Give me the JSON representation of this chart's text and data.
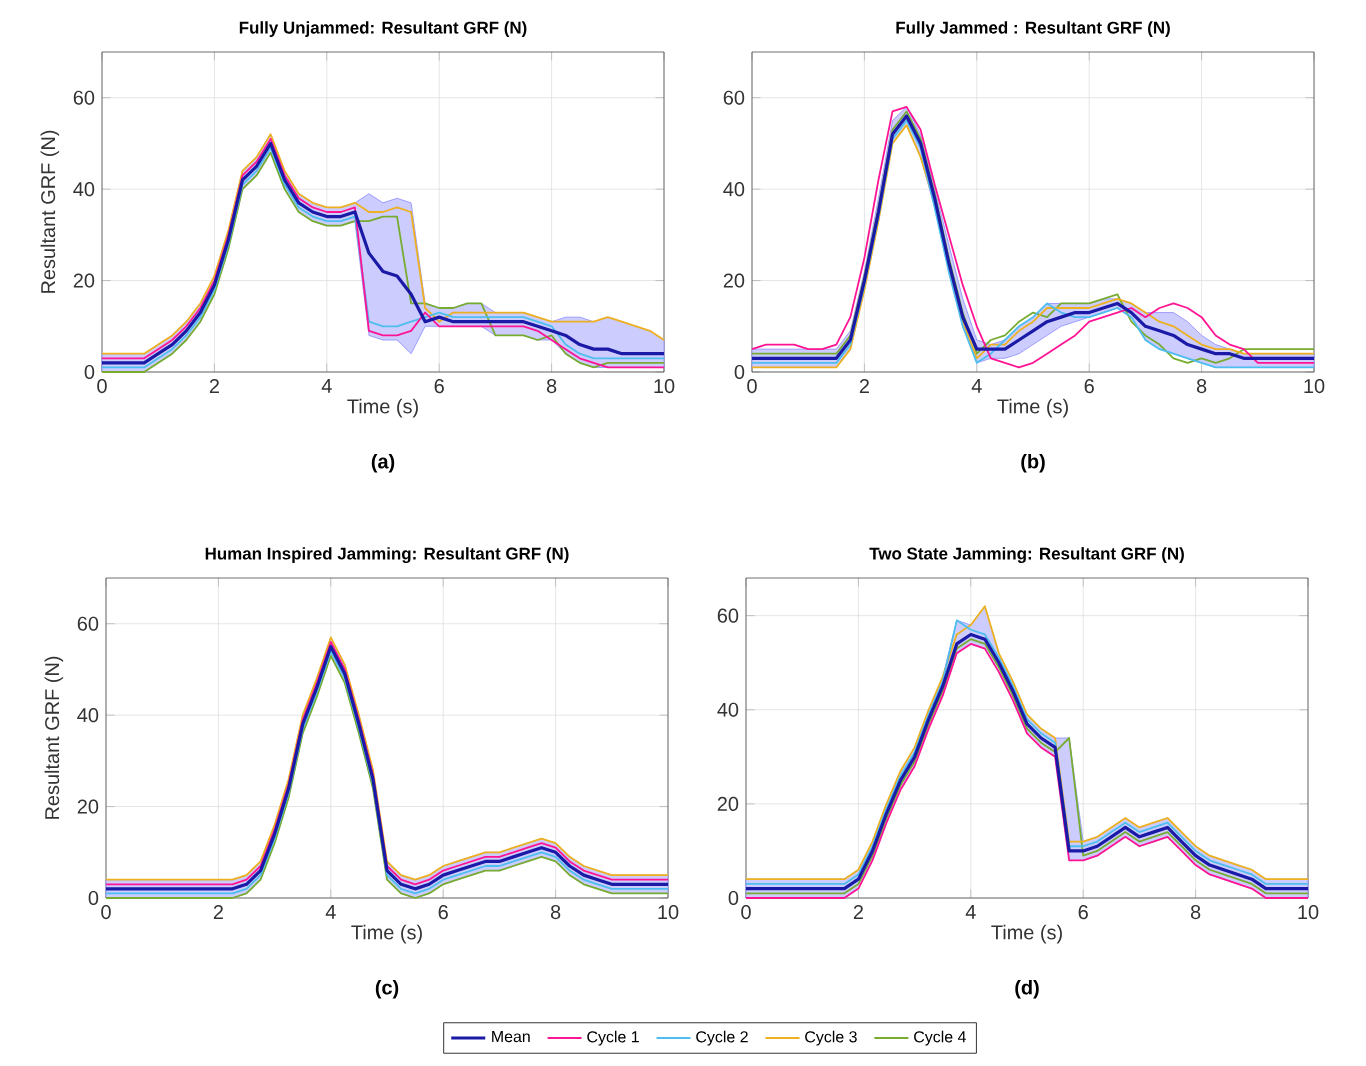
{
  "chart_data": [
    {
      "type": "line",
      "title": "Fully Unjammed: Resultant GRF (N)",
      "xlabel": "Time (s)",
      "ylabel": "Resultant GRF (N)",
      "annotations": [
        "(a)"
      ],
      "xlim": [
        0,
        10
      ],
      "xticks": [
        0,
        2,
        4,
        6,
        8,
        10
      ],
      "ylim": [
        0,
        70
      ],
      "yticks": [
        0,
        20,
        40,
        60
      ],
      "grid": true,
      "x": [
        0,
        0.25,
        0.5,
        0.75,
        1,
        1.25,
        1.5,
        1.75,
        2,
        2.25,
        2.5,
        2.75,
        3,
        3.25,
        3.5,
        3.75,
        4,
        4.25,
        4.5,
        4.75,
        5,
        5.25,
        5.5,
        5.75,
        6,
        6.25,
        6.5,
        6.75,
        7,
        7.25,
        7.5,
        7.75,
        8,
        8.25,
        8.5,
        8.75,
        9,
        9.25,
        9.5,
        9.75,
        10
      ],
      "series": [
        {
          "color": "#1a1aa6",
          "values": [
            2,
            2,
            2,
            2,
            4,
            6,
            9,
            13,
            19,
            29,
            42,
            45,
            50,
            42,
            37,
            35,
            34,
            34,
            35,
            26,
            22,
            21,
            17,
            11,
            12,
            11,
            11,
            11,
            11,
            11,
            11,
            10,
            9,
            8,
            6,
            5,
            5,
            4,
            4,
            4,
            4
          ],
          "lower": [
            0,
            0,
            0,
            0,
            2,
            4,
            7,
            11,
            17,
            27,
            40,
            43,
            48,
            40,
            35,
            33,
            32,
            32,
            33,
            8,
            7,
            7,
            4,
            10,
            10,
            10,
            10,
            10,
            8,
            8,
            8,
            7,
            7,
            4,
            2,
            1,
            1,
            1,
            1,
            1,
            1
          ],
          "upper": [
            4,
            4,
            4,
            4,
            6,
            8,
            11,
            15,
            21,
            31,
            44,
            47,
            52,
            44,
            39,
            37,
            36,
            36,
            37,
            39,
            37,
            38,
            37,
            15,
            14,
            14,
            15,
            15,
            13,
            13,
            13,
            12,
            11,
            12,
            12,
            11,
            12,
            11,
            10,
            9,
            7
          ]
        },
        {
          "color": "#ff1493",
          "values": [
            3,
            3,
            3,
            3,
            5,
            7,
            10,
            14,
            20,
            30,
            43,
            46,
            51,
            43,
            38,
            36,
            35,
            35,
            36,
            9,
            8,
            8,
            9,
            13,
            10,
            10,
            10,
            10,
            10,
            10,
            10,
            9,
            7,
            5,
            3,
            2,
            1,
            1,
            1,
            1,
            1
          ]
        },
        {
          "color": "#4dbeee",
          "values": [
            1,
            1,
            1,
            1,
            3,
            5,
            8,
            12,
            18,
            28,
            41,
            44,
            49,
            41,
            36,
            34,
            33,
            33,
            34,
            11,
            10,
            10,
            11,
            12,
            13,
            12,
            12,
            12,
            12,
            12,
            12,
            11,
            10,
            6,
            4,
            3,
            3,
            3,
            3,
            3,
            3
          ]
        },
        {
          "color": "#edb120",
          "values": [
            4,
            4,
            4,
            4,
            6,
            8,
            11,
            15,
            21,
            31,
            44,
            47,
            52,
            44,
            39,
            37,
            36,
            36,
            37,
            35,
            35,
            36,
            35,
            14,
            11,
            13,
            13,
            13,
            13,
            13,
            13,
            12,
            11,
            11,
            11,
            11,
            12,
            11,
            10,
            9,
            7
          ]
        },
        {
          "color": "#77ac30",
          "values": [
            0,
            0,
            0,
            0,
            2,
            4,
            7,
            11,
            17,
            27,
            40,
            43,
            48,
            40,
            35,
            33,
            32,
            32,
            33,
            33,
            34,
            34,
            15,
            15,
            14,
            14,
            15,
            15,
            8,
            8,
            8,
            7,
            8,
            4,
            2,
            1,
            2,
            2,
            2,
            2,
            2
          ]
        }
      ]
    },
    {
      "type": "line",
      "title": "Fully Jammed : Resultant GRF (N)",
      "xlabel": "Time (s)",
      "annotations": [
        "(b)"
      ],
      "xlim": [
        0,
        10
      ],
      "xticks": [
        0,
        2,
        4,
        6,
        8,
        10
      ],
      "ylim": [
        0,
        70
      ],
      "yticks": [
        0,
        20,
        40,
        60
      ],
      "grid": true,
      "x": [
        0,
        0.25,
        0.5,
        0.75,
        1,
        1.25,
        1.5,
        1.75,
        2,
        2.25,
        2.5,
        2.75,
        3,
        3.25,
        3.5,
        3.75,
        4,
        4.25,
        4.5,
        4.75,
        5,
        5.25,
        5.5,
        5.75,
        6,
        6.25,
        6.5,
        6.75,
        7,
        7.25,
        7.5,
        7.75,
        8,
        8.25,
        8.5,
        8.75,
        9,
        9.25,
        9.5,
        9.75,
        10
      ],
      "series": [
        {
          "color": "#1a1aa6",
          "values": [
            3,
            3,
            3,
            3,
            3,
            3,
            3,
            7,
            20,
            35,
            52,
            56,
            50,
            38,
            24,
            12,
            5,
            5,
            5,
            7,
            9,
            11,
            12,
            13,
            13,
            14,
            15,
            13,
            10,
            9,
            8,
            6,
            5,
            4,
            4,
            3,
            3,
            3,
            3,
            3,
            3
          ],
          "lower": [
            1,
            1,
            1,
            1,
            1,
            1,
            1,
            5,
            18,
            33,
            50,
            54,
            47,
            36,
            22,
            10,
            2,
            3,
            3,
            4,
            6,
            8,
            10,
            11,
            12,
            13,
            14,
            12,
            7,
            5,
            4,
            3,
            2,
            1,
            1,
            1,
            1,
            1,
            1,
            1,
            1
          ],
          "upper": [
            5,
            5,
            5,
            5,
            5,
            5,
            5,
            9,
            22,
            38,
            55,
            58,
            52,
            40,
            28,
            16,
            7,
            6,
            7,
            10,
            12,
            15,
            15,
            15,
            15,
            16,
            16,
            15,
            13,
            13,
            13,
            11,
            8,
            6,
            5,
            4,
            4,
            4,
            4,
            4,
            4
          ]
        },
        {
          "color": "#ff1493",
          "values": [
            5,
            6,
            6,
            6,
            5,
            5,
            6,
            12,
            25,
            42,
            57,
            58,
            53,
            41,
            30,
            19,
            10,
            3,
            2,
            1,
            2,
            4,
            6,
            8,
            11,
            12,
            13,
            14,
            12,
            14,
            15,
            14,
            12,
            8,
            6,
            5,
            2,
            2,
            2,
            2,
            2
          ]
        },
        {
          "color": "#4dbeee",
          "values": [
            2,
            2,
            2,
            2,
            2,
            2,
            2,
            6,
            19,
            34,
            51,
            55,
            49,
            36,
            22,
            10,
            2,
            4,
            7,
            10,
            12,
            15,
            13,
            12,
            12,
            13,
            14,
            12,
            7,
            5,
            4,
            3,
            2,
            1,
            1,
            1,
            1,
            1,
            1,
            1,
            1
          ]
        },
        {
          "color": "#edb120",
          "values": [
            1,
            1,
            1,
            1,
            1,
            1,
            1,
            5,
            18,
            33,
            50,
            54,
            47,
            37,
            23,
            11,
            3,
            6,
            6,
            9,
            11,
            14,
            14,
            14,
            14,
            15,
            16,
            15,
            13,
            11,
            10,
            8,
            6,
            5,
            5,
            4,
            4,
            4,
            4,
            4,
            4
          ]
        },
        {
          "color": "#77ac30",
          "values": [
            4,
            4,
            4,
            4,
            4,
            4,
            4,
            8,
            21,
            36,
            53,
            57,
            51,
            39,
            25,
            13,
            4,
            7,
            8,
            11,
            13,
            12,
            15,
            15,
            15,
            16,
            17,
            11,
            8,
            6,
            3,
            2,
            3,
            2,
            3,
            5,
            5,
            5,
            5,
            5,
            5
          ]
        }
      ]
    },
    {
      "type": "line",
      "title": "Human Inspired Jamming: Resultant GRF (N)",
      "xlabel": "Time (s)",
      "ylabel": "Resultant GRF (N)",
      "annotations": [
        "(c)"
      ],
      "xlim": [
        0,
        10
      ],
      "xticks": [
        0,
        2,
        4,
        6,
        8,
        10
      ],
      "ylim": [
        0,
        70
      ],
      "yticks": [
        0,
        20,
        40,
        60
      ],
      "grid": true,
      "x": [
        0,
        0.25,
        0.5,
        0.75,
        1,
        1.25,
        1.5,
        1.75,
        2,
        2.25,
        2.5,
        2.75,
        3,
        3.25,
        3.5,
        3.75,
        4,
        4.25,
        4.5,
        4.75,
        5,
        5.25,
        5.5,
        5.75,
        6,
        6.25,
        6.5,
        6.75,
        7,
        7.25,
        7.5,
        7.75,
        8,
        8.25,
        8.5,
        8.75,
        9,
        9.25,
        9.5,
        9.75,
        10
      ],
      "series": [
        {
          "color": "#1a1aa6",
          "values": [
            2,
            2,
            2,
            2,
            2,
            2,
            2,
            2,
            2,
            2,
            3,
            6,
            14,
            24,
            38,
            46,
            55,
            49,
            38,
            26,
            6,
            3,
            2,
            3,
            5,
            6,
            7,
            8,
            8,
            9,
            10,
            11,
            10,
            7,
            5,
            4,
            3,
            3,
            3,
            3,
            3
          ],
          "lower": [
            0,
            0,
            0,
            0,
            0,
            0,
            0,
            0,
            0,
            0,
            1,
            4,
            12,
            22,
            36,
            44,
            53,
            47,
            36,
            24,
            4,
            1,
            0,
            1,
            3,
            4,
            5,
            6,
            6,
            7,
            8,
            9,
            8,
            5,
            3,
            2,
            1,
            1,
            1,
            1,
            1
          ],
          "upper": [
            4,
            4,
            4,
            4,
            4,
            4,
            4,
            4,
            4,
            4,
            5,
            8,
            16,
            26,
            40,
            48,
            57,
            51,
            40,
            28,
            8,
            5,
            4,
            5,
            7,
            8,
            9,
            10,
            10,
            11,
            12,
            13,
            12,
            9,
            7,
            6,
            5,
            5,
            5,
            5,
            5
          ]
        },
        {
          "color": "#ff1493",
          "values": [
            3,
            3,
            3,
            3,
            3,
            3,
            3,
            3,
            3,
            3,
            4,
            7,
            15,
            25,
            39,
            47,
            56,
            50,
            39,
            27,
            7,
            4,
            3,
            4,
            6,
            7,
            8,
            9,
            9,
            10,
            11,
            12,
            11,
            8,
            6,
            5,
            4,
            4,
            4,
            4,
            4
          ]
        },
        {
          "color": "#4dbeee",
          "values": [
            1,
            1,
            1,
            1,
            1,
            1,
            1,
            1,
            1,
            1,
            2,
            5,
            13,
            23,
            37,
            45,
            54,
            48,
            37,
            25,
            5,
            2,
            1,
            2,
            4,
            5,
            6,
            7,
            7,
            8,
            9,
            10,
            9,
            6,
            4,
            3,
            2,
            2,
            2,
            2,
            2
          ]
        },
        {
          "color": "#edb120",
          "values": [
            4,
            4,
            4,
            4,
            4,
            4,
            4,
            4,
            4,
            4,
            5,
            8,
            16,
            26,
            40,
            48,
            57,
            51,
            40,
            28,
            8,
            5,
            4,
            5,
            7,
            8,
            9,
            10,
            10,
            11,
            12,
            13,
            12,
            9,
            7,
            6,
            5,
            5,
            5,
            5,
            5
          ]
        },
        {
          "color": "#77ac30",
          "values": [
            0,
            0,
            0,
            0,
            0,
            0,
            0,
            0,
            0,
            0,
            1,
            4,
            12,
            22,
            36,
            44,
            53,
            47,
            36,
            24,
            4,
            1,
            0,
            1,
            3,
            4,
            5,
            6,
            6,
            7,
            8,
            9,
            8,
            5,
            3,
            2,
            1,
            1,
            1,
            1,
            1
          ]
        }
      ]
    },
    {
      "type": "line",
      "title": "Two State Jamming: Resultant GRF (N)",
      "xlabel": "Time (s)",
      "annotations": [
        "(d)"
      ],
      "xlim": [
        0,
        10
      ],
      "xticks": [
        0,
        2,
        4,
        6,
        8,
        10
      ],
      "ylim": [
        0,
        68
      ],
      "yticks": [
        0,
        20,
        40,
        60
      ],
      "grid": true,
      "legend": "bottom",
      "x": [
        0,
        0.25,
        0.5,
        0.75,
        1,
        1.25,
        1.5,
        1.75,
        2,
        2.25,
        2.5,
        2.75,
        3,
        3.25,
        3.5,
        3.75,
        4,
        4.25,
        4.5,
        4.75,
        5,
        5.25,
        5.5,
        5.75,
        6,
        6.25,
        6.5,
        6.75,
        7,
        7.25,
        7.5,
        7.75,
        8,
        8.25,
        8.5,
        8.75,
        9,
        9.25,
        9.5,
        9.75,
        10
      ],
      "series": [
        {
          "name": "Mean",
          "color": "#1a1aa6",
          "values": [
            2,
            2,
            2,
            2,
            2,
            2,
            2,
            2,
            4,
            10,
            18,
            25,
            30,
            38,
            45,
            54,
            56,
            55,
            50,
            44,
            37,
            34,
            32,
            10,
            10,
            11,
            13,
            15,
            13,
            14,
            15,
            12,
            9,
            7,
            6,
            5,
            4,
            2,
            2,
            2,
            2
          ],
          "lower": [
            0,
            0,
            0,
            0,
            0,
            0,
            0,
            0,
            2,
            8,
            16,
            23,
            28,
            36,
            43,
            52,
            54,
            53,
            48,
            42,
            35,
            32,
            30,
            8,
            8,
            9,
            11,
            13,
            11,
            12,
            13,
            10,
            7,
            5,
            4,
            3,
            2,
            0,
            0,
            0,
            0
          ],
          "upper": [
            4,
            4,
            4,
            4,
            4,
            4,
            4,
            4,
            6,
            12,
            20,
            27,
            32,
            40,
            47,
            59,
            58,
            62,
            52,
            46,
            39,
            36,
            34,
            34,
            12,
            13,
            15,
            17,
            15,
            16,
            17,
            14,
            11,
            9,
            8,
            7,
            6,
            4,
            4,
            4,
            4
          ]
        },
        {
          "name": "Cycle 1",
          "color": "#ff1493",
          "values": [
            0,
            0,
            0,
            0,
            0,
            0,
            0,
            0,
            2,
            8,
            16,
            23,
            28,
            36,
            43,
            52,
            54,
            53,
            48,
            42,
            35,
            32,
            30,
            8,
            8,
            9,
            11,
            13,
            11,
            12,
            13,
            10,
            7,
            5,
            4,
            3,
            2,
            0,
            0,
            0,
            0
          ]
        },
        {
          "name": "Cycle 2",
          "color": "#4dbeee",
          "values": [
            3,
            3,
            3,
            3,
            3,
            3,
            3,
            3,
            5,
            11,
            19,
            26,
            31,
            39,
            46,
            59,
            57,
            56,
            51,
            45,
            38,
            35,
            33,
            11,
            11,
            12,
            14,
            16,
            14,
            15,
            16,
            13,
            10,
            8,
            7,
            6,
            5,
            3,
            3,
            3,
            3
          ]
        },
        {
          "name": "Cycle 3",
          "color": "#edb120",
          "values": [
            4,
            4,
            4,
            4,
            4,
            4,
            4,
            4,
            6,
            12,
            20,
            27,
            32,
            40,
            47,
            56,
            58,
            62,
            52,
            46,
            39,
            36,
            34,
            12,
            12,
            13,
            15,
            17,
            15,
            16,
            17,
            14,
            11,
            9,
            8,
            7,
            6,
            4,
            4,
            4,
            4
          ]
        },
        {
          "name": "Cycle 4",
          "color": "#77ac30",
          "values": [
            1,
            1,
            1,
            1,
            1,
            1,
            1,
            1,
            3,
            9,
            17,
            24,
            29,
            37,
            44,
            53,
            55,
            54,
            49,
            43,
            36,
            33,
            31,
            34,
            9,
            10,
            12,
            14,
            12,
            13,
            14,
            11,
            8,
            6,
            5,
            4,
            3,
            1,
            1,
            1,
            1
          ]
        }
      ]
    }
  ]
}
